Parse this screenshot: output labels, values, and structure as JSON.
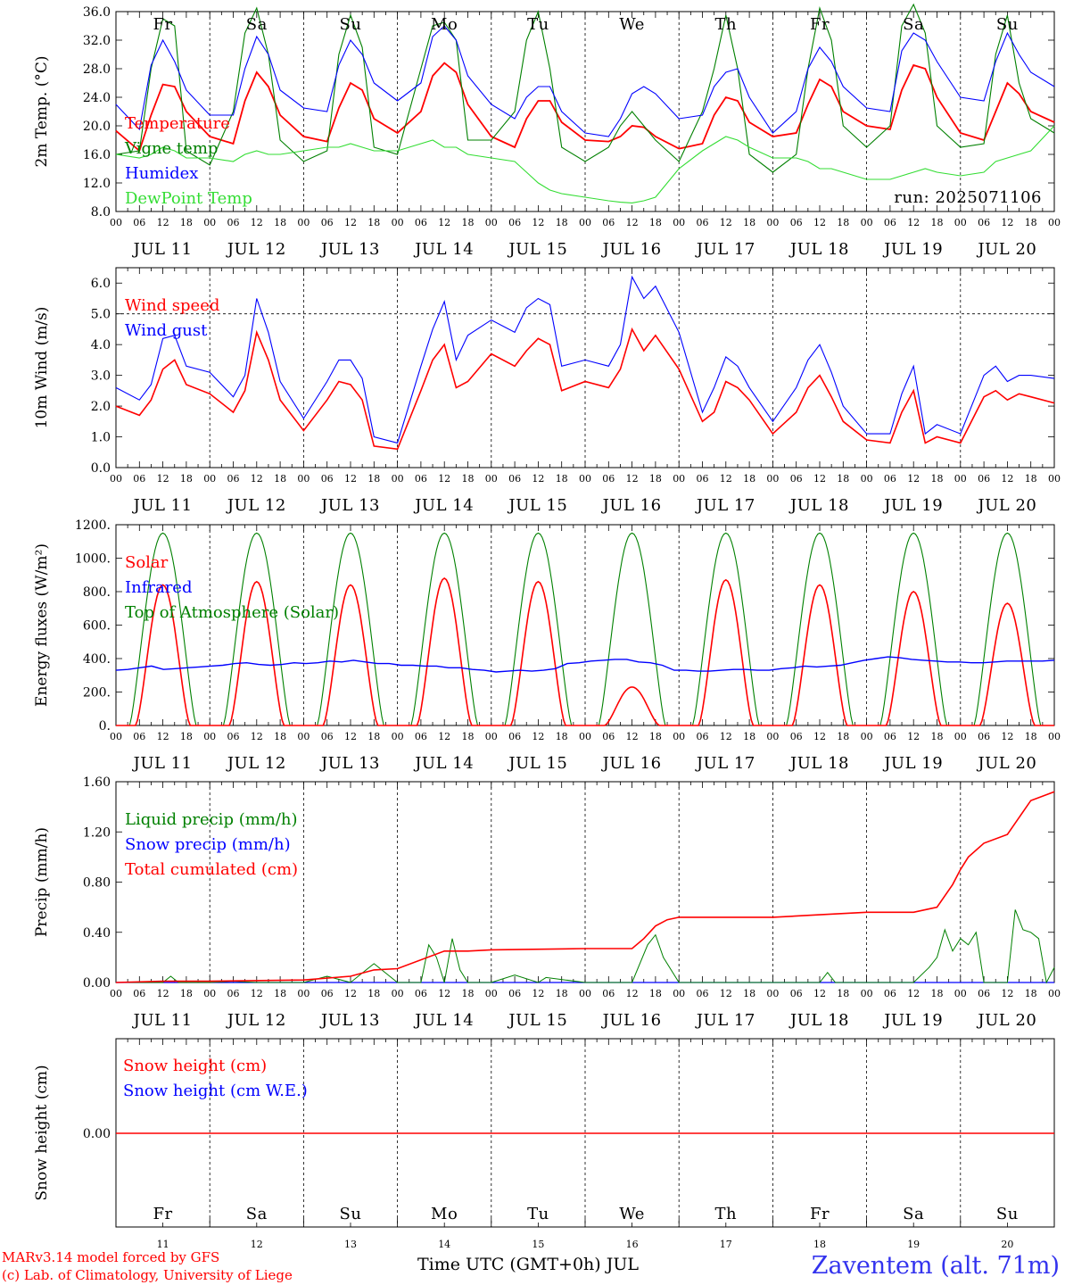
{
  "colors": {
    "red": "#ff0000",
    "blue": "#0000ff",
    "green": "#008000",
    "lime": "#33dd33",
    "grey": "#000000"
  },
  "days": [
    {
      "abbr": "Fr",
      "weekend": false,
      "date": "JUL 11",
      "num": "11"
    },
    {
      "abbr": "Sa",
      "weekend": true,
      "date": "JUL 12",
      "num": "12"
    },
    {
      "abbr": "Su",
      "weekend": true,
      "date": "JUL 13",
      "num": "13"
    },
    {
      "abbr": "Mo",
      "weekend": false,
      "date": "JUL 14",
      "num": "14"
    },
    {
      "abbr": "Tu",
      "weekend": false,
      "date": "JUL 15",
      "num": "15"
    },
    {
      "abbr": "We",
      "weekend": false,
      "date": "JUL 16",
      "num": "16"
    },
    {
      "abbr": "Th",
      "weekend": false,
      "date": "JUL 17",
      "num": "17"
    },
    {
      "abbr": "Fr",
      "weekend": false,
      "date": "JUL 18",
      "num": "18"
    },
    {
      "abbr": "Sa",
      "weekend": true,
      "date": "JUL 19",
      "num": "19"
    },
    {
      "abbr": "Su",
      "weekend": true,
      "date": "JUL 20",
      "num": "20"
    }
  ],
  "hour_labels": [
    "00",
    "06",
    "12",
    "18"
  ],
  "run_label": "run: 2025071106",
  "x_axis_title": "Time UTC (GMT+0h) JUL",
  "station": "Zaventem (alt. 71m)",
  "credit1": "MARv3.14 model forced by GFS",
  "credit2": "(c) Lab. of Climatology, University of Liege",
  "chart_data": [
    {
      "type": "line",
      "ylabel": "2m Temp. (°C)",
      "ylim": [
        8,
        36
      ],
      "yticks": [
        "8.0",
        "12.0",
        "16.0",
        "20.0",
        "24.0",
        "28.0",
        "32.0",
        "36.0"
      ],
      "x_hours": [
        0,
        6,
        9,
        12,
        15,
        18,
        24,
        30,
        33,
        36,
        39,
        42,
        48,
        54,
        57,
        60,
        63,
        66,
        72,
        78,
        81,
        84,
        87,
        90,
        96,
        102,
        105,
        108,
        111,
        114,
        120,
        126,
        129,
        132,
        135,
        138,
        144,
        150,
        153,
        156,
        159,
        162,
        168,
        174,
        177,
        180,
        183,
        186,
        192,
        198,
        201,
        204,
        207,
        210,
        216,
        222,
        225,
        228,
        231,
        234,
        240
      ],
      "series": [
        {
          "name": "Temperature",
          "color": "red",
          "values": [
            19.3,
            16.5,
            21.5,
            25.8,
            25.5,
            22.0,
            18.5,
            17.5,
            23.5,
            27.5,
            25.5,
            21.5,
            18.5,
            17.8,
            22.5,
            26.0,
            25.0,
            21.0,
            19.0,
            22.0,
            27.0,
            28.8,
            27.5,
            23.0,
            18.5,
            17.0,
            21.0,
            23.5,
            23.5,
            20.5,
            18.0,
            17.8,
            18.5,
            20.0,
            19.8,
            18.5,
            16.8,
            17.5,
            21.5,
            24.0,
            23.5,
            20.5,
            18.5,
            19.0,
            23.0,
            26.5,
            25.5,
            22.0,
            20.0,
            19.5,
            25.0,
            28.5,
            28.0,
            24.0,
            19.0,
            18.0,
            22.0,
            26.0,
            24.5,
            22.0,
            20.5
          ]
        },
        {
          "name": "Vigne temp",
          "color": "green",
          "values": [
            16.0,
            16.5,
            28.0,
            35.0,
            34.0,
            16.5,
            14.5,
            22.0,
            33.0,
            36.5,
            30.0,
            18.0,
            15.0,
            16.5,
            30.0,
            35.5,
            31.0,
            17.0,
            16.0,
            28.0,
            34.0,
            34.5,
            32.0,
            18.0,
            18.0,
            22.0,
            32.0,
            36.0,
            28.0,
            17.0,
            15.0,
            17.0,
            20.0,
            22.0,
            20.0,
            18.0,
            15.0,
            22.0,
            28.0,
            35.5,
            28.0,
            16.0,
            13.5,
            16.0,
            28.0,
            36.5,
            32.0,
            20.0,
            17.0,
            20.0,
            34.0,
            37.0,
            33.0,
            20.0,
            17.0,
            17.5,
            30.0,
            35.5,
            26.0,
            21.0,
            19.0
          ]
        },
        {
          "name": "Humidex",
          "color": "blue",
          "values": [
            23.0,
            19.5,
            28.5,
            32.0,
            29.0,
            25.0,
            21.5,
            21.5,
            28.0,
            32.5,
            30.0,
            25.0,
            22.5,
            22.0,
            28.5,
            32.0,
            30.0,
            26.0,
            23.5,
            26.0,
            32.5,
            34.0,
            32.0,
            27.0,
            23.0,
            21.0,
            24.0,
            25.5,
            25.5,
            22.0,
            19.0,
            18.5,
            21.0,
            24.5,
            25.5,
            24.5,
            21.0,
            21.5,
            25.5,
            27.5,
            28.0,
            24.0,
            19.0,
            22.0,
            28.0,
            31.0,
            29.0,
            25.5,
            22.5,
            22.0,
            30.5,
            33.0,
            32.0,
            29.0,
            24.0,
            23.5,
            29.0,
            33.0,
            30.0,
            27.5,
            25.5
          ]
        },
        {
          "name": "DewPoint Temp",
          "color": "lime",
          "values": [
            16.0,
            15.5,
            16.0,
            17.0,
            16.5,
            15.5,
            15.5,
            15.0,
            16.0,
            16.5,
            16.0,
            16.0,
            16.5,
            17.0,
            17.0,
            17.5,
            17.0,
            16.5,
            16.5,
            17.5,
            18.0,
            17.0,
            17.0,
            16.0,
            15.5,
            15.0,
            13.5,
            12.0,
            11.0,
            10.5,
            10.0,
            9.5,
            9.3,
            9.2,
            9.5,
            10.0,
            14.0,
            16.5,
            17.5,
            18.5,
            18.0,
            17.0,
            15.5,
            15.5,
            15.0,
            14.0,
            14.0,
            13.5,
            12.5,
            12.5,
            13.0,
            13.5,
            14.0,
            13.5,
            13.0,
            13.5,
            15.0,
            15.5,
            16.0,
            16.5,
            20.0
          ]
        }
      ]
    },
    {
      "type": "line",
      "ylabel": "10m Wind (m/s)",
      "ylim": [
        0,
        6.5
      ],
      "yticks": [
        "0.0",
        "1.0",
        "2.0",
        "3.0",
        "4.0",
        "5.0",
        "6.0"
      ],
      "reference_line": 5.0,
      "x_hours": [
        0,
        6,
        9,
        12,
        15,
        18,
        24,
        30,
        33,
        36,
        39,
        42,
        48,
        54,
        57,
        60,
        63,
        66,
        72,
        78,
        81,
        84,
        87,
        90,
        96,
        102,
        105,
        108,
        111,
        114,
        120,
        126,
        129,
        132,
        135,
        138,
        144,
        150,
        153,
        156,
        159,
        162,
        168,
        174,
        177,
        180,
        183,
        186,
        192,
        198,
        201,
        204,
        207,
        210,
        216,
        222,
        225,
        228,
        231,
        234,
        240
      ],
      "series": [
        {
          "name": "Wind speed",
          "color": "red",
          "values": [
            2.0,
            1.7,
            2.2,
            3.2,
            3.5,
            2.7,
            2.4,
            1.8,
            2.5,
            4.4,
            3.5,
            2.2,
            1.2,
            2.2,
            2.8,
            2.7,
            2.2,
            0.7,
            0.6,
            2.5,
            3.5,
            4.0,
            2.6,
            2.8,
            3.7,
            3.3,
            3.8,
            4.2,
            4.0,
            2.5,
            2.8,
            2.6,
            3.2,
            4.5,
            3.8,
            4.3,
            3.2,
            1.5,
            1.8,
            2.8,
            2.6,
            2.2,
            1.1,
            1.8,
            2.6,
            3.0,
            2.3,
            1.5,
            0.9,
            0.8,
            1.8,
            2.5,
            0.8,
            1.0,
            0.8,
            2.3,
            2.5,
            2.2,
            2.4,
            2.3,
            2.1
          ]
        },
        {
          "name": "Wind gust",
          "color": "blue",
          "values": [
            2.6,
            2.2,
            2.7,
            4.2,
            4.3,
            3.3,
            3.1,
            2.3,
            3.0,
            5.5,
            4.4,
            2.8,
            1.6,
            2.8,
            3.5,
            3.5,
            2.9,
            1.0,
            0.8,
            3.3,
            4.5,
            5.4,
            3.5,
            4.3,
            4.8,
            4.4,
            5.2,
            5.5,
            5.3,
            3.3,
            3.5,
            3.3,
            4.0,
            6.2,
            5.5,
            5.9,
            4.4,
            1.8,
            2.6,
            3.6,
            3.3,
            2.6,
            1.5,
            2.6,
            3.5,
            4.0,
            3.1,
            2.0,
            1.1,
            1.1,
            2.4,
            3.3,
            1.1,
            1.4,
            1.1,
            3.0,
            3.3,
            2.8,
            3.0,
            3.0,
            2.9
          ]
        }
      ]
    },
    {
      "type": "line",
      "ylabel": "Energy fluxes (W/m²)",
      "ylim": [
        0,
        1200
      ],
      "yticks": [
        "0.",
        "200.",
        "400.",
        "600.",
        "800.",
        "1000.",
        "1200."
      ],
      "solar_daily_peaks": [
        840,
        860,
        840,
        880,
        860,
        230,
        870,
        840,
        800,
        730
      ],
      "toa_peak": 1150,
      "infrared_hourly": [
        330,
        335,
        345,
        355,
        335,
        340,
        345,
        350,
        355,
        360,
        370,
        375,
        365,
        360,
        365,
        375,
        370,
        375,
        385,
        380,
        390,
        380,
        370,
        370,
        360,
        360,
        355,
        355,
        345,
        345,
        335,
        330,
        320,
        325,
        330,
        325,
        330,
        340,
        370,
        375,
        385,
        390,
        395,
        395,
        380,
        375,
        360,
        330,
        330,
        325,
        325,
        330,
        335,
        335,
        330,
        330,
        340,
        345,
        355,
        350,
        355,
        360,
        375,
        390,
        400,
        410,
        405,
        395,
        390,
        385,
        380,
        380,
        375,
        375,
        380,
        385,
        385,
        385,
        385,
        390
      ],
      "series": [
        {
          "name": "Solar",
          "color": "red"
        },
        {
          "name": "Infrared",
          "color": "blue"
        },
        {
          "name": "Top of Atmosphere (Solar)",
          "color": "green"
        }
      ]
    },
    {
      "type": "line",
      "ylabel": "Precip (mm/h)",
      "ylim": [
        0,
        1.6
      ],
      "yticks": [
        "0.00",
        "0.40",
        "0.80",
        "1.20",
        "1.60"
      ],
      "liquid_x_hours": [
        0,
        12,
        14,
        16,
        24,
        30,
        36,
        48,
        54,
        60,
        64,
        66,
        72,
        78,
        80,
        82,
        84,
        86,
        88,
        90,
        96,
        102,
        108,
        110,
        120,
        132,
        136,
        138,
        140,
        144,
        150,
        168,
        180,
        182,
        184,
        192,
        204,
        208,
        210,
        212,
        214,
        216,
        218,
        220,
        222,
        228,
        230,
        232,
        234,
        236,
        238,
        240
      ],
      "liquid_values": [
        0,
        0.0,
        0.05,
        0.0,
        0.0,
        0.01,
        0.0,
        0.0,
        0.05,
        0.0,
        0.1,
        0.15,
        0.0,
        0.0,
        0.3,
        0.2,
        0.0,
        0.35,
        0.1,
        0.0,
        0.0,
        0.06,
        0.0,
        0.04,
        0.0,
        0.0,
        0.3,
        0.38,
        0.2,
        0.0,
        0.0,
        0.0,
        0.0,
        0.08,
        0.0,
        0.0,
        0.0,
        0.12,
        0.2,
        0.42,
        0.25,
        0.35,
        0.3,
        0.4,
        0.0,
        0.0,
        0.58,
        0.42,
        0.4,
        0.35,
        0.0,
        0.12
      ],
      "total_x_hours": [
        0,
        12,
        24,
        48,
        60,
        66,
        72,
        84,
        90,
        96,
        120,
        132,
        135,
        138,
        141,
        144,
        168,
        180,
        192,
        204,
        210,
        214,
        216,
        218,
        222,
        228,
        234,
        240
      ],
      "total_values": [
        0,
        0.01,
        0.01,
        0.02,
        0.05,
        0.1,
        0.11,
        0.25,
        0.25,
        0.26,
        0.27,
        0.27,
        0.35,
        0.45,
        0.5,
        0.52,
        0.52,
        0.54,
        0.56,
        0.56,
        0.6,
        0.78,
        0.9,
        1.0,
        1.11,
        1.18,
        1.45,
        1.52
      ],
      "series": [
        {
          "name": "Liquid precip (mm/h)",
          "color": "green"
        },
        {
          "name": "Snow precip (mm/h)",
          "color": "blue"
        },
        {
          "name": "Total cumulated (cm)",
          "color": "red"
        }
      ]
    },
    {
      "type": "line",
      "ylabel": "Snow height (cm)",
      "yticks": [
        "0.00"
      ],
      "series": [
        {
          "name": "Snow height (cm)",
          "color": "red",
          "values": [
            0,
            0
          ]
        },
        {
          "name": "Snow height (cm W.E.)",
          "color": "blue",
          "values": [
            0,
            0
          ]
        }
      ]
    }
  ]
}
